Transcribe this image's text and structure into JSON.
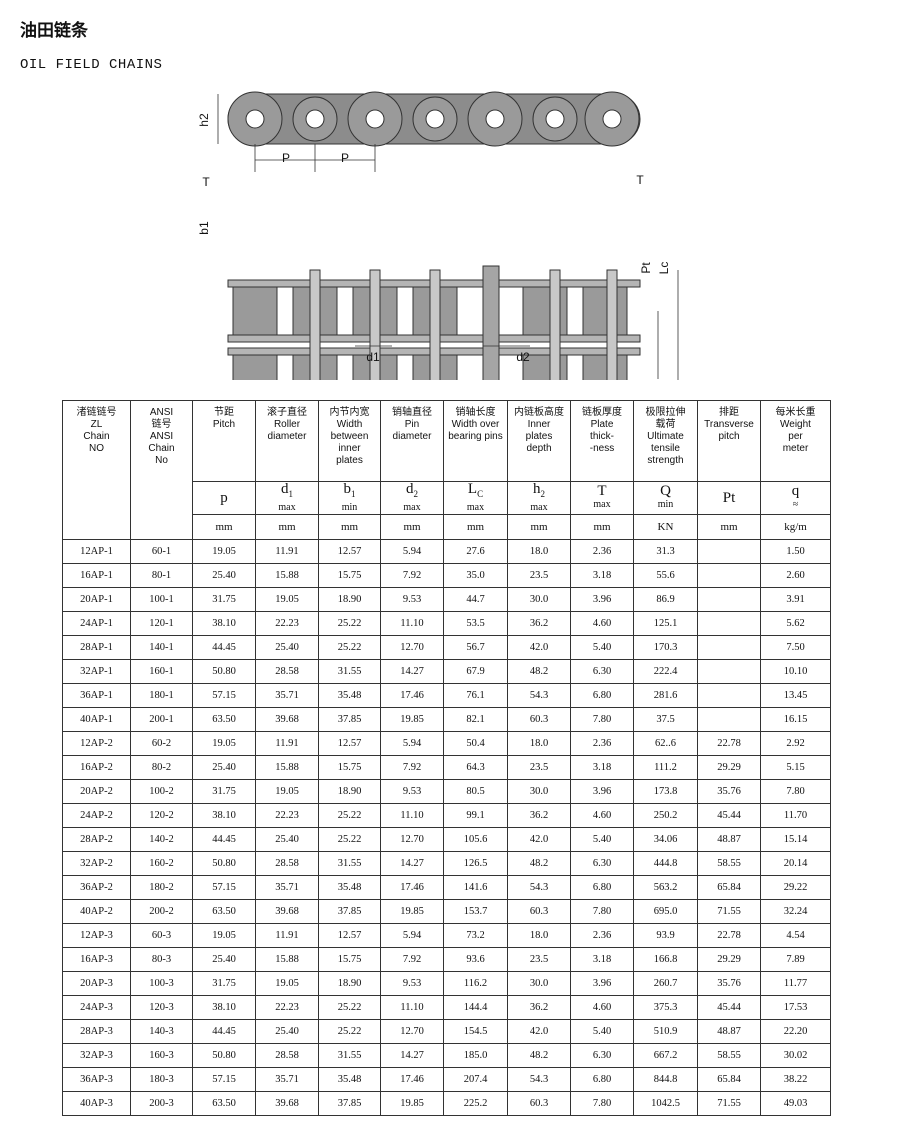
{
  "header": {
    "title": "油田链条",
    "subtitle": "OIL FIELD CHAINS"
  },
  "diagram": {
    "labels": [
      "h2",
      "P",
      "P",
      "T",
      "b1",
      "d1",
      "d2",
      "T",
      "Pt",
      "Lc"
    ]
  },
  "table": {
    "columns": [
      [
        "渚链链号",
        "ZL",
        "Chain",
        "NO"
      ],
      [
        "ANSI",
        "链号",
        "ANSI",
        "Chain",
        "No"
      ],
      [
        "节距",
        "Pitch"
      ],
      [
        "滚子直径",
        "Roller",
        "diameter"
      ],
      [
        "内节内宽",
        "Width",
        "between",
        "inner",
        "plates"
      ],
      [
        "销轴直径",
        "Pin",
        "diameter"
      ],
      [
        "销轴长度",
        "Width over",
        "bearing pins"
      ],
      [
        "内链板高度",
        "Inner",
        "plates",
        "depth"
      ],
      [
        "链板厚度",
        "Plate",
        "thick-",
        "-ness"
      ],
      [
        "极限拉伸",
        "载荷",
        "Ultimate",
        "tensile",
        "strength"
      ],
      [
        "排距",
        "Transverse",
        "pitch"
      ],
      [
        "每米长重",
        "Weight",
        "per",
        "meter"
      ]
    ],
    "symbols": [
      {
        "main": "p"
      },
      {
        "main": "d",
        "sub": "1",
        "limit": "max"
      },
      {
        "main": "b",
        "sub": "1",
        "limit": "min"
      },
      {
        "main": "d",
        "sub": "2",
        "limit": "max"
      },
      {
        "main": "L",
        "sub": "C",
        "limit": "max"
      },
      {
        "main": "h",
        "sub": "2",
        "limit": "max"
      },
      {
        "main": "T",
        "limit": "max"
      },
      {
        "main": "Q",
        "limit": "min"
      },
      {
        "main": "Pt"
      },
      {
        "main": "q",
        "limit": "≈"
      }
    ],
    "units": [
      "mm",
      "mm",
      "mm",
      "mm",
      "mm",
      "mm",
      "mm",
      "KN",
      "mm",
      "kg/m"
    ],
    "rows": [
      [
        "12AP-1",
        "60-1",
        "19.05",
        "11.91",
        "12.57",
        "5.94",
        "27.6",
        "18.0",
        "2.36",
        "31.3",
        null,
        "1.50"
      ],
      [
        "16AP-1",
        "80-1",
        "25.40",
        "15.88",
        "15.75",
        "7.92",
        "35.0",
        "23.5",
        "3.18",
        "55.6",
        null,
        "2.60"
      ],
      [
        "20AP-1",
        "100-1",
        "31.75",
        "19.05",
        "18.90",
        "9.53",
        "44.7",
        "30.0",
        "3.96",
        "86.9",
        null,
        "3.91"
      ],
      [
        "24AP-1",
        "120-1",
        "38.10",
        "22.23",
        "25.22",
        "11.10",
        "53.5",
        "36.2",
        "4.60",
        "125.1",
        null,
        "5.62"
      ],
      [
        "28AP-1",
        "140-1",
        "44.45",
        "25.40",
        "25.22",
        "12.70",
        "56.7",
        "42.0",
        "5.40",
        "170.3",
        null,
        "7.50"
      ],
      [
        "32AP-1",
        "160-1",
        "50.80",
        "28.58",
        "31.55",
        "14.27",
        "67.9",
        "48.2",
        "6.30",
        "222.4",
        null,
        "10.10"
      ],
      [
        "36AP-1",
        "180-1",
        "57.15",
        "35.71",
        "35.48",
        "17.46",
        "76.1",
        "54.3",
        "6.80",
        "281.6",
        null,
        "13.45"
      ],
      [
        "40AP-1",
        "200-1",
        "63.50",
        "39.68",
        "37.85",
        "19.85",
        "82.1",
        "60.3",
        "7.80",
        "37.5",
        null,
        "16.15"
      ],
      [
        "12AP-2",
        "60-2",
        "19.05",
        "11.91",
        "12.57",
        "5.94",
        "50.4",
        "18.0",
        "2.36",
        "62..6",
        "22.78",
        "2.92"
      ],
      [
        "16AP-2",
        "80-2",
        "25.40",
        "15.88",
        "15.75",
        "7.92",
        "64.3",
        "23.5",
        "3.18",
        "111.2",
        "29.29",
        "5.15"
      ],
      [
        "20AP-2",
        "100-2",
        "31.75",
        "19.05",
        "18.90",
        "9.53",
        "80.5",
        "30.0",
        "3.96",
        "173.8",
        "35.76",
        "7.80"
      ],
      [
        "24AP-2",
        "120-2",
        "38.10",
        "22.23",
        "25.22",
        "11.10",
        "99.1",
        "36.2",
        "4.60",
        "250.2",
        "45.44",
        "11.70"
      ],
      [
        "28AP-2",
        "140-2",
        "44.45",
        "25.40",
        "25.22",
        "12.70",
        "105.6",
        "42.0",
        "5.40",
        "34.06",
        "48.87",
        "15.14"
      ],
      [
        "32AP-2",
        "160-2",
        "50.80",
        "28.58",
        "31.55",
        "14.27",
        "126.5",
        "48.2",
        "6.30",
        "444.8",
        "58.55",
        "20.14"
      ],
      [
        "36AP-2",
        "180-2",
        "57.15",
        "35.71",
        "35.48",
        "17.46",
        "141.6",
        "54.3",
        "6.80",
        "563.2",
        "65.84",
        "29.22"
      ],
      [
        "40AP-2",
        "200-2",
        "63.50",
        "39.68",
        "37.85",
        "19.85",
        "153.7",
        "60.3",
        "7.80",
        "695.0",
        "71.55",
        "32.24"
      ],
      [
        "12AP-3",
        "60-3",
        "19.05",
        "11.91",
        "12.57",
        "5.94",
        "73.2",
        "18.0",
        "2.36",
        "93.9",
        "22.78",
        "4.54"
      ],
      [
        "16AP-3",
        "80-3",
        "25.40",
        "15.88",
        "15.75",
        "7.92",
        "93.6",
        "23.5",
        "3.18",
        "166.8",
        "29.29",
        "7.89"
      ],
      [
        "20AP-3",
        "100-3",
        "31.75",
        "19.05",
        "18.90",
        "9.53",
        "116.2",
        "30.0",
        "3.96",
        "260.7",
        "35.76",
        "11.77"
      ],
      [
        "24AP-3",
        "120-3",
        "38.10",
        "22.23",
        "25.22",
        "11.10",
        "144.4",
        "36.2",
        "4.60",
        "375.3",
        "45.44",
        "17.53"
      ],
      [
        "28AP-3",
        "140-3",
        "44.45",
        "25.40",
        "25.22",
        "12.70",
        "154.5",
        "42.0",
        "5.40",
        "510.9",
        "48.87",
        "22.20"
      ],
      [
        "32AP-3",
        "160-3",
        "50.80",
        "28.58",
        "31.55",
        "14.27",
        "185.0",
        "48.2",
        "6.30",
        "667.2",
        "58.55",
        "30.02"
      ],
      [
        "36AP-3",
        "180-3",
        "57.15",
        "35.71",
        "35.48",
        "17.46",
        "207.4",
        "54.3",
        "6.80",
        "844.8",
        "65.84",
        "38.22"
      ],
      [
        "40AP-3",
        "200-3",
        "63.50",
        "39.68",
        "37.85",
        "19.85",
        "225.2",
        "60.3",
        "7.80",
        "1042.5",
        "71.55",
        "49.03"
      ]
    ]
  }
}
